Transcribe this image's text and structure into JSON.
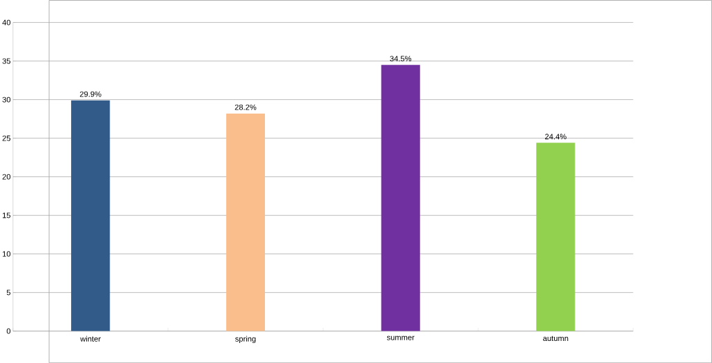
{
  "chart_data": {
    "type": "bar",
    "categories": [
      "winter",
      "spring",
      "summer",
      "autumn"
    ],
    "values": [
      29.9,
      28.2,
      34.5,
      24.4
    ],
    "colors": [
      "#335b8a",
      "#f9be8c",
      "#7030a0",
      "#92d050"
    ],
    "value_labels": [
      "29.9%",
      "28.2%",
      "34.5%",
      "24.4%"
    ],
    "ylim": [
      0,
      40
    ],
    "yticks": [
      0,
      5,
      10,
      15,
      20,
      25,
      30,
      35,
      40
    ],
    "grid": "y"
  }
}
